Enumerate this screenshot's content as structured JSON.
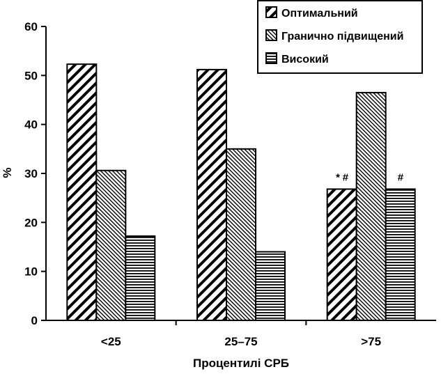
{
  "chart_data": {
    "type": "bar",
    "categories": [
      "<25",
      "25–75",
      ">75"
    ],
    "series": [
      {
        "name": "Оптимальний",
        "values": [
          52.3,
          51.2,
          26.8
        ],
        "pattern": "diag-thick"
      },
      {
        "name": "Гранично підвищений",
        "values": [
          30.6,
          35.0,
          46.5
        ],
        "pattern": "diag-fine"
      },
      {
        "name": "Високий",
        "values": [
          17.2,
          14.0,
          26.8
        ],
        "pattern": "horizontal"
      }
    ],
    "annotations": [
      {
        "category": 2,
        "series": 0,
        "text": "* #"
      },
      {
        "category": 2,
        "series": 2,
        "text": "#"
      }
    ],
    "xlabel": "Процентилі СРБ",
    "ylabel": "%",
    "ylim": [
      0,
      60
    ],
    "yticks": [
      0,
      10,
      20,
      30,
      40,
      50,
      60
    ],
    "grid": false,
    "legend_position": "top-right"
  },
  "colors": {
    "ink": "#000000",
    "background": "#ffffff"
  }
}
